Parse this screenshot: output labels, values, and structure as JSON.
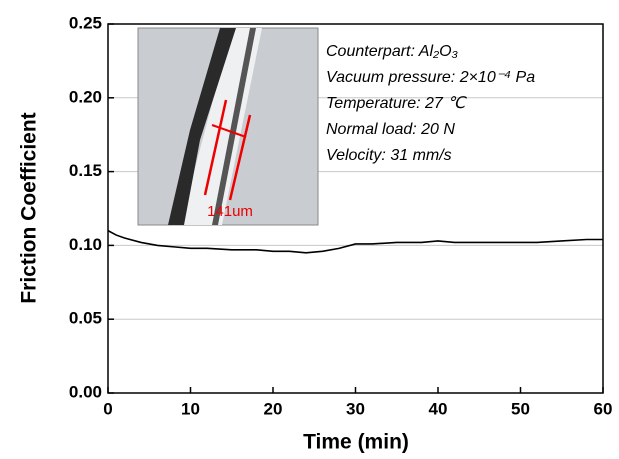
{
  "chart_data": {
    "type": "line",
    "xlabel": "Time (min)",
    "ylabel": "Friction Coefficient",
    "x": [
      0,
      1,
      2,
      4,
      6,
      8,
      10,
      12,
      15,
      18,
      20,
      22,
      24,
      26,
      28,
      30,
      32,
      35,
      38,
      40,
      42,
      45,
      48,
      50,
      52,
      55,
      58,
      60
    ],
    "series": [
      {
        "name": "Friction coefficient",
        "color": "#000000",
        "values": [
          0.11,
          0.107,
          0.105,
          0.102,
          0.1,
          0.099,
          0.098,
          0.098,
          0.097,
          0.097,
          0.096,
          0.096,
          0.095,
          0.096,
          0.098,
          0.101,
          0.101,
          0.102,
          0.102,
          0.103,
          0.102,
          0.102,
          0.102,
          0.102,
          0.102,
          0.103,
          0.104,
          0.104
        ]
      }
    ],
    "xlim": [
      0,
      60
    ],
    "xticks": [
      0,
      10,
      20,
      30,
      40,
      50,
      60
    ],
    "ylim": [
      0,
      0.25
    ],
    "yticks": [
      {
        "value": 0,
        "label": "0.00"
      },
      {
        "value": 0.05,
        "label": "0.05"
      },
      {
        "value": 0.1,
        "label": "0.10"
      },
      {
        "value": 0.15,
        "label": "0.15"
      },
      {
        "value": 0.2,
        "label": "0.20"
      },
      {
        "value": 0.25,
        "label": "0.25"
      }
    ],
    "grid": true,
    "annotations": [
      "Counterpart: Al₂O₃",
      "Vacuum pressure: 2×10⁻⁴ Pa",
      "Temperature: 27 ℃",
      "Normal load: 20 N",
      "Velocity: 31 mm/s"
    ],
    "inset_label": "141um"
  }
}
